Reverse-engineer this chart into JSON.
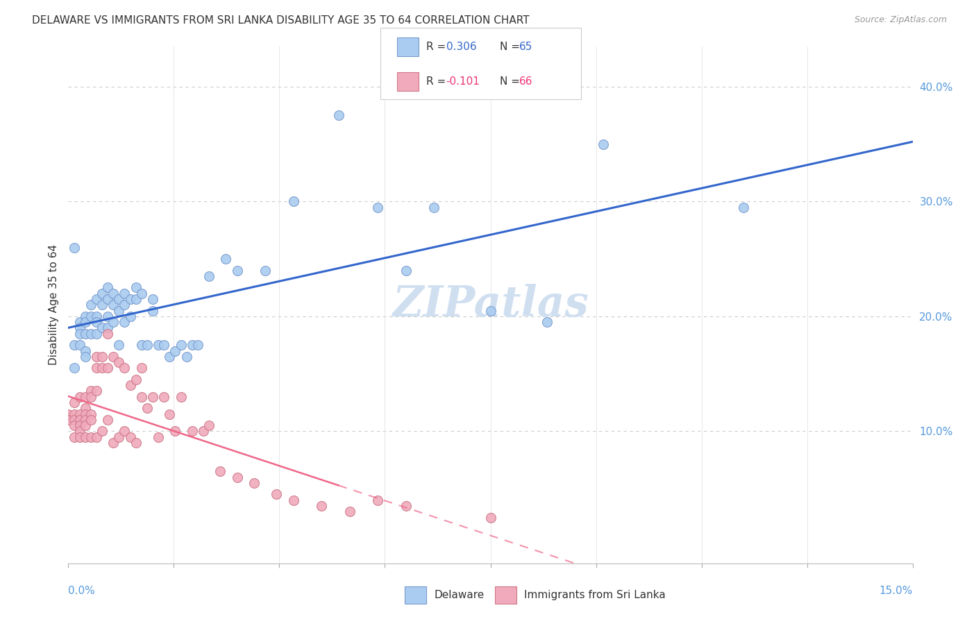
{
  "title": "DELAWARE VS IMMIGRANTS FROM SRI LANKA DISABILITY AGE 35 TO 64 CORRELATION CHART",
  "source": "Source: ZipAtlas.com",
  "ylabel": "Disability Age 35 to 64",
  "ylabel_right_labels": [
    "10.0%",
    "20.0%",
    "30.0%",
    "40.0%"
  ],
  "ylabel_right_values": [
    0.1,
    0.2,
    0.3,
    0.4
  ],
  "xlim": [
    0.0,
    0.15
  ],
  "ylim": [
    -0.015,
    0.435
  ],
  "delaware_color": "#aaccf0",
  "delaware_edge": "#7799cc",
  "srilanka_color": "#f0aabb",
  "srilanka_edge": "#cc7788",
  "trend_delaware_color": "#3366cc",
  "trend_srilanka_color": "#ee6688",
  "watermark_color": "#d0dff0",
  "background_color": "#ffffff",
  "delaware_x": [
    0.001,
    0.001,
    0.001,
    0.002,
    0.002,
    0.002,
    0.002,
    0.003,
    0.003,
    0.003,
    0.003,
    0.003,
    0.004,
    0.004,
    0.004,
    0.005,
    0.005,
    0.005,
    0.005,
    0.006,
    0.006,
    0.006,
    0.007,
    0.007,
    0.007,
    0.007,
    0.008,
    0.008,
    0.008,
    0.009,
    0.009,
    0.009,
    0.01,
    0.01,
    0.01,
    0.011,
    0.011,
    0.012,
    0.012,
    0.013,
    0.013,
    0.014,
    0.015,
    0.015,
    0.016,
    0.017,
    0.018,
    0.019,
    0.02,
    0.021,
    0.022,
    0.023,
    0.025,
    0.028,
    0.03,
    0.035,
    0.04,
    0.048,
    0.055,
    0.06,
    0.065,
    0.075,
    0.085,
    0.095,
    0.12
  ],
  "delaware_y": [
    0.26,
    0.175,
    0.155,
    0.195,
    0.19,
    0.185,
    0.175,
    0.2,
    0.195,
    0.185,
    0.17,
    0.165,
    0.21,
    0.2,
    0.185,
    0.215,
    0.2,
    0.195,
    0.185,
    0.22,
    0.21,
    0.19,
    0.225,
    0.215,
    0.2,
    0.19,
    0.22,
    0.21,
    0.195,
    0.215,
    0.205,
    0.175,
    0.22,
    0.21,
    0.195,
    0.215,
    0.2,
    0.225,
    0.215,
    0.22,
    0.175,
    0.175,
    0.215,
    0.205,
    0.175,
    0.175,
    0.165,
    0.17,
    0.175,
    0.165,
    0.175,
    0.175,
    0.235,
    0.25,
    0.24,
    0.24,
    0.3,
    0.375,
    0.295,
    0.24,
    0.295,
    0.205,
    0.195,
    0.35,
    0.295
  ],
  "srilanka_x": [
    0.0,
    0.0,
    0.001,
    0.001,
    0.001,
    0.001,
    0.001,
    0.002,
    0.002,
    0.002,
    0.002,
    0.002,
    0.002,
    0.003,
    0.003,
    0.003,
    0.003,
    0.003,
    0.003,
    0.004,
    0.004,
    0.004,
    0.004,
    0.004,
    0.005,
    0.005,
    0.005,
    0.005,
    0.006,
    0.006,
    0.006,
    0.007,
    0.007,
    0.007,
    0.008,
    0.008,
    0.009,
    0.009,
    0.01,
    0.01,
    0.011,
    0.011,
    0.012,
    0.012,
    0.013,
    0.013,
    0.014,
    0.015,
    0.016,
    0.017,
    0.018,
    0.019,
    0.02,
    0.022,
    0.024,
    0.025,
    0.027,
    0.03,
    0.033,
    0.037,
    0.04,
    0.045,
    0.05,
    0.055,
    0.06,
    0.075
  ],
  "srilanka_y": [
    0.115,
    0.11,
    0.125,
    0.115,
    0.11,
    0.105,
    0.095,
    0.13,
    0.115,
    0.11,
    0.105,
    0.1,
    0.095,
    0.13,
    0.12,
    0.115,
    0.11,
    0.105,
    0.095,
    0.135,
    0.13,
    0.115,
    0.11,
    0.095,
    0.165,
    0.155,
    0.135,
    0.095,
    0.165,
    0.155,
    0.1,
    0.185,
    0.155,
    0.11,
    0.165,
    0.09,
    0.16,
    0.095,
    0.155,
    0.1,
    0.14,
    0.095,
    0.145,
    0.09,
    0.155,
    0.13,
    0.12,
    0.13,
    0.095,
    0.13,
    0.115,
    0.1,
    0.13,
    0.1,
    0.1,
    0.105,
    0.065,
    0.06,
    0.055,
    0.045,
    0.04,
    0.035,
    0.03,
    0.04,
    0.035,
    0.025
  ]
}
